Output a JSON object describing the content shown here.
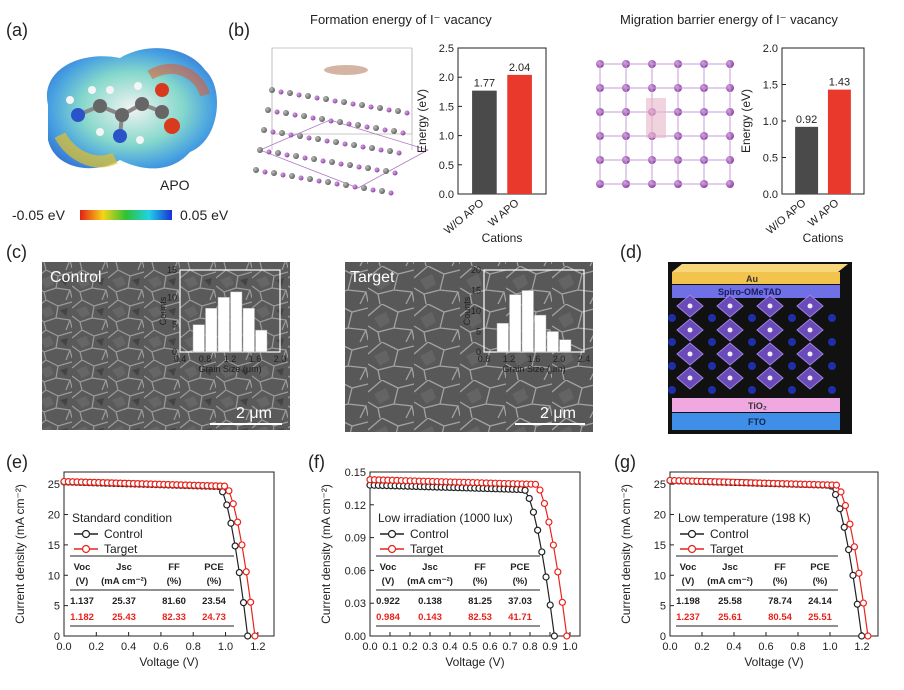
{
  "panel_labels": {
    "a": "(a)",
    "b": "(b)",
    "c": "(c)",
    "d": "(d)",
    "e": "(e)",
    "f": "(f)",
    "g": "(g)"
  },
  "panel_a": {
    "molecule_label": "APO",
    "scale_min": "-0.05 eV",
    "scale_max": "0.05 eV"
  },
  "panel_b": {
    "title_formation": "Formation energy of I⁻ vacancy",
    "title_migration": "Migration barrier energy of I⁻ vacancy"
  },
  "panel_c": {
    "control_label": "Control",
    "target_label": "Target",
    "scale_bar": "2 μm",
    "inset_ylabel": "Counts",
    "inset_xlabel": "Grain Size (μm)"
  },
  "panel_d": {
    "layers": [
      "Au",
      "Spiro-OMeTAD",
      "TiO₂",
      "FTO"
    ]
  },
  "colors": {
    "control": "#222222",
    "target": "#e8231c",
    "bar_dark": "#4a4a4a",
    "bar_red": "#e8392c",
    "au": "#f2c34d",
    "spiro": "#6f6fe6",
    "tio2": "#f0a8e0",
    "fto": "#3f8fe8",
    "perovskite": "#6a49b8"
  },
  "table_headers": {
    "row1": [
      "Voc",
      "Jsc",
      "FF",
      "PCE"
    ],
    "row2": [
      "(V)",
      "(mA cm⁻²)",
      "(%)",
      "(%)"
    ]
  },
  "chart_data": [
    {
      "id": "b1",
      "type": "bar",
      "categories": [
        "W/O APO",
        "W APO"
      ],
      "values": [
        1.77,
        2.04
      ],
      "value_labels": [
        "1.77",
        "2.04"
      ],
      "xlabel": "Cations",
      "ylabel": "Energy (eV)",
      "ylim": [
        0,
        2.5
      ],
      "yticks": [
        "0.0",
        "0.5",
        "1.0",
        "1.5",
        "2.0",
        "2.5"
      ],
      "tickvals": [
        0,
        0.5,
        1.0,
        1.5,
        2.0,
        2.5
      ]
    },
    {
      "id": "b2",
      "type": "bar",
      "categories": [
        "W/O APO",
        "W APO"
      ],
      "values": [
        0.92,
        1.43
      ],
      "value_labels": [
        "0.92",
        "1.43"
      ],
      "xlabel": "Cations",
      "ylabel": "Energy (eV)",
      "ylim": [
        0,
        2.0
      ],
      "yticks": [
        "0.0",
        "0.5",
        "1.0",
        "1.5",
        "2.0"
      ],
      "tickvals": [
        0,
        0.5,
        1.0,
        1.5,
        2.0
      ]
    },
    {
      "id": "c1",
      "type": "bar",
      "xlabel": "Grain Size (μm)",
      "ylabel": "Counts",
      "bins": [
        0.7,
        0.9,
        1.1,
        1.3,
        1.5,
        1.7
      ],
      "values": [
        5,
        8,
        10,
        11,
        8,
        4
      ],
      "xlim": [
        0.4,
        2.0
      ],
      "ylim": [
        0,
        15
      ],
      "xticks": [
        "0.4",
        "0.8",
        "1.2",
        "1.6",
        "2.0"
      ],
      "xtickvals": [
        0.4,
        0.8,
        1.2,
        1.6,
        2.0
      ],
      "yticks": [
        "0",
        "5",
        "10",
        "15"
      ],
      "ytickvals": [
        0,
        5,
        10,
        15
      ]
    },
    {
      "id": "c2",
      "type": "bar",
      "xlabel": "Grain Size (μm)",
      "ylabel": "Counts",
      "bins": [
        1.1,
        1.3,
        1.5,
        1.7,
        1.9,
        2.1
      ],
      "values": [
        7,
        14,
        15,
        9,
        5,
        3
      ],
      "xlim": [
        0.8,
        2.4
      ],
      "ylim": [
        0,
        20
      ],
      "xticks": [
        "0.8",
        "1.2",
        "1.6",
        "2.0",
        "2.4"
      ],
      "xtickvals": [
        0.8,
        1.2,
        1.6,
        2.0,
        2.4
      ],
      "yticks": [
        "0",
        "5",
        "10",
        "15",
        "20"
      ],
      "ytickvals": [
        0,
        5,
        10,
        15,
        20
      ]
    },
    {
      "id": "e",
      "type": "line",
      "condition": "Standard condition",
      "xlabel": "Voltage (V)",
      "ylabel": "Current density (mA cm⁻²)",
      "xlim": [
        0,
        1.3
      ],
      "ylim": [
        0,
        27
      ],
      "xticks": [
        "0.0",
        "0.2",
        "0.4",
        "0.6",
        "0.8",
        "1.0",
        "1.2"
      ],
      "xtickvals": [
        0,
        0.2,
        0.4,
        0.6,
        0.8,
        1.0,
        1.2
      ],
      "yticks": [
        "0",
        "5",
        "10",
        "15",
        "20",
        "25"
      ],
      "ytickvals": [
        0,
        5,
        10,
        15,
        20,
        25
      ],
      "series": [
        {
          "name": "Control",
          "jsc": 25.37,
          "voc": 1.137,
          "knee": 0.96
        },
        {
          "name": "Target",
          "jsc": 25.43,
          "voc": 1.182,
          "knee": 1.0
        }
      ],
      "table": [
        [
          "1.137",
          "25.37",
          "81.60",
          "23.54"
        ],
        [
          "1.182",
          "25.43",
          "82.33",
          "24.73"
        ]
      ]
    },
    {
      "id": "f",
      "type": "line",
      "condition": "Low irradiation (1000 lux)",
      "xlabel": "Voltage (V)",
      "ylabel": "Current density (mA cm⁻²)",
      "xlim": [
        0,
        1.05
      ],
      "ylim": [
        0,
        0.15
      ],
      "xticks": [
        "0.0",
        "0.1",
        "0.2",
        "0.3",
        "0.4",
        "0.5",
        "0.6",
        "0.7",
        "0.8",
        "0.9",
        "1.0"
      ],
      "xtickvals": [
        0,
        0.1,
        0.2,
        0.3,
        0.4,
        0.5,
        0.6,
        0.7,
        0.8,
        0.9,
        1.0
      ],
      "yticks": [
        "0.00",
        "0.03",
        "0.06",
        "0.09",
        "0.12",
        "0.15"
      ],
      "ytickvals": [
        0,
        0.03,
        0.06,
        0.09,
        0.12,
        0.15
      ],
      "series": [
        {
          "name": "Control",
          "jsc": 0.138,
          "voc": 0.922,
          "knee": 0.77
        },
        {
          "name": "Target",
          "jsc": 0.143,
          "voc": 0.984,
          "knee": 0.83
        }
      ],
      "table": [
        [
          "0.922",
          "0.138",
          "81.25",
          "37.03"
        ],
        [
          "0.984",
          "0.143",
          "82.53",
          "41.71"
        ]
      ]
    },
    {
      "id": "g",
      "type": "line",
      "condition": "Low temperature (198 K)",
      "xlabel": "Voltage (V)",
      "ylabel": "Current density (mA cm⁻²)",
      "xlim": [
        0,
        1.3
      ],
      "ylim": [
        0,
        27
      ],
      "xticks": [
        "0.0",
        "0.2",
        "0.4",
        "0.6",
        "0.8",
        "1.0",
        "1.2"
      ],
      "xtickvals": [
        0,
        0.2,
        0.4,
        0.6,
        0.8,
        1.0,
        1.2
      ],
      "yticks": [
        "0",
        "5",
        "10",
        "15",
        "20",
        "25"
      ],
      "ytickvals": [
        0,
        5,
        10,
        15,
        20,
        25
      ],
      "series": [
        {
          "name": "Control",
          "jsc": 25.58,
          "voc": 1.198,
          "knee": 1.0
        },
        {
          "name": "Target",
          "jsc": 25.61,
          "voc": 1.237,
          "knee": 1.04
        }
      ],
      "table": [
        [
          "1.198",
          "25.58",
          "78.74",
          "24.14"
        ],
        [
          "1.237",
          "25.61",
          "80.54",
          "25.51"
        ]
      ]
    }
  ]
}
